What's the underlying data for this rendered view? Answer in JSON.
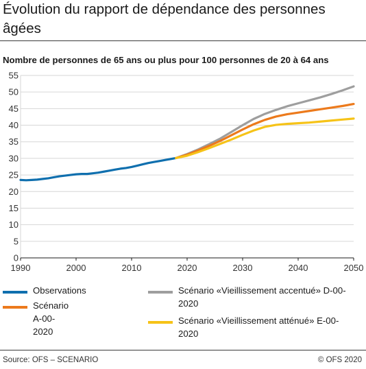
{
  "title": "Évolution du rapport de dépendance des personnes âgées",
  "subtitle": "Nombre de personnes de 65 ans ou plus pour 100 personnes de 20 à 64 ans",
  "source": "Source: OFS – SCENARIO",
  "copyright": "© OFS 2020",
  "chart_data": {
    "type": "line",
    "title": "Évolution du rapport de dépendance des personnes âgées",
    "subtitle": "Nombre de personnes de 65 ans ou plus pour 100 personnes de 20 à 64 ans",
    "xlabel": "",
    "ylabel": "",
    "xlim": [
      1990,
      2050
    ],
    "ylim": [
      0,
      55
    ],
    "xticks": [
      "1990",
      "2000",
      "2010",
      "2020",
      "2030",
      "2040",
      "2050"
    ],
    "yticks": [
      "0",
      "5",
      "10",
      "15",
      "20",
      "25",
      "30",
      "35",
      "40",
      "45",
      "50",
      "55"
    ],
    "grid": true,
    "legend_position": "bottom",
    "series": [
      {
        "name": "Observations",
        "color": "#0f6fae",
        "x": [
          1990,
          1991,
          1992,
          1993,
          1994,
          1995,
          1996,
          1997,
          1998,
          1999,
          2000,
          2001,
          2002,
          2003,
          2004,
          2005,
          2006,
          2007,
          2008,
          2009,
          2010,
          2011,
          2012,
          2013,
          2014,
          2015,
          2016,
          2017,
          2018
        ],
        "values": [
          23.5,
          23.4,
          23.5,
          23.6,
          23.8,
          24.0,
          24.3,
          24.6,
          24.8,
          25.0,
          25.2,
          25.3,
          25.3,
          25.5,
          25.7,
          26.0,
          26.3,
          26.6,
          26.9,
          27.1,
          27.4,
          27.8,
          28.2,
          28.6,
          28.9,
          29.2,
          29.5,
          29.8,
          30.1
        ]
      },
      {
        "name": "Scénario «Vieillissement accentué» D-00-2020",
        "color": "#9e9e9e",
        "x": [
          2018,
          2020,
          2022,
          2024,
          2026,
          2028,
          2030,
          2032,
          2034,
          2036,
          2038,
          2040,
          2042,
          2044,
          2046,
          2048,
          2050
        ],
        "values": [
          30.1,
          31.3,
          32.7,
          34.3,
          36.0,
          38.0,
          40.0,
          41.9,
          43.4,
          44.6,
          45.7,
          46.6,
          47.5,
          48.4,
          49.4,
          50.5,
          51.7
        ]
      },
      {
        "name": "Scénario A-00-2020",
        "color": "#ec7a1c",
        "x": [
          2018,
          2020,
          2022,
          2024,
          2026,
          2028,
          2030,
          2032,
          2034,
          2036,
          2038,
          2040,
          2042,
          2044,
          2046,
          2048,
          2050
        ],
        "values": [
          30.1,
          31.1,
          32.4,
          33.8,
          35.3,
          37.0,
          38.7,
          40.3,
          41.6,
          42.6,
          43.3,
          43.8,
          44.3,
          44.8,
          45.3,
          45.8,
          46.4
        ]
      },
      {
        "name": "Scénario «Vieillissement atténué» E-00-2020",
        "color": "#f6c318",
        "x": [
          2018,
          2020,
          2022,
          2024,
          2026,
          2028,
          2030,
          2032,
          2034,
          2036,
          2038,
          2040,
          2042,
          2044,
          2046,
          2048,
          2050
        ],
        "values": [
          30.1,
          30.8,
          31.9,
          33.1,
          34.4,
          35.7,
          37.1,
          38.4,
          39.5,
          40.1,
          40.4,
          40.6,
          40.8,
          41.1,
          41.4,
          41.7,
          42.0
        ]
      }
    ],
    "legend": [
      {
        "label": "Observations",
        "color": "#0f6fae"
      },
      {
        "label": "Scénario A-00-2020",
        "color": "#ec7a1c"
      },
      {
        "label": "Scénario «Vieillissement accentué» D-00-2020",
        "color": "#9e9e9e"
      },
      {
        "label": "Scénario «Vieillissement atténué» E-00-2020",
        "color": "#f6c318"
      }
    ]
  }
}
